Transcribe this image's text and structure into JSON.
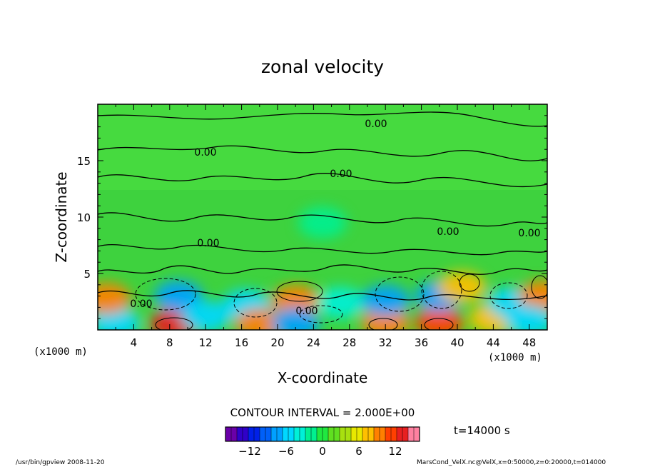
{
  "chart_data": {
    "type": "heatmap",
    "title": "zonal velocity",
    "xlabel": "X-coordinate",
    "ylabel": "Z-coordinate",
    "x_unit_left": "(x1000 m)",
    "x_unit_right": "(x1000 m)",
    "xlim": [
      0,
      50
    ],
    "ylim": [
      0,
      20
    ],
    "x_ticks": [
      4,
      8,
      12,
      16,
      20,
      24,
      28,
      32,
      36,
      40,
      44,
      48
    ],
    "y_ticks": [
      5,
      10,
      15
    ],
    "contour_interval_text": "CONTOUR INTERVAL = 2.000E+00",
    "contour_label": "0.00",
    "time_text": "t=14000 s",
    "colorbar": {
      "range": [
        -16,
        16
      ],
      "ticks": [
        -12,
        -6,
        0,
        6,
        12
      ],
      "tick_labels": [
        "−12",
        "−6",
        "0",
        "6",
        "12"
      ],
      "colors": [
        "#6a00a8",
        "#3000c8",
        "#0020e8",
        "#0060f8",
        "#00a0ff",
        "#00d8ff",
        "#00f0d8",
        "#00f090",
        "#20e840",
        "#60e020",
        "#a8e010",
        "#e8e800",
        "#ffc000",
        "#ff8000",
        "#ff4000",
        "#e82020",
        "#ff80a0"
      ]
    },
    "cells": [
      {
        "x": 2,
        "z": 0.6,
        "v": -6
      },
      {
        "x": 1,
        "z": 2.8,
        "v": 10
      },
      {
        "x": 8.5,
        "z": 0.5,
        "v": 13
      },
      {
        "x": 9,
        "z": 3.0,
        "v": -7
      },
      {
        "x": 12,
        "z": 1.2,
        "v": -5
      },
      {
        "x": 16.5,
        "z": 2.2,
        "v": -5
      },
      {
        "x": 18,
        "z": 0.5,
        "v": 10
      },
      {
        "x": 22,
        "z": 2.6,
        "v": 9
      },
      {
        "x": 22,
        "z": 0.6,
        "v": -8
      },
      {
        "x": 27,
        "z": 2.4,
        "v": -4
      },
      {
        "x": 32,
        "z": 0.6,
        "v": 10
      },
      {
        "x": 32,
        "z": 2.6,
        "v": -7
      },
      {
        "x": 38,
        "z": 0.6,
        "v": 12
      },
      {
        "x": 38,
        "z": 3.0,
        "v": -7
      },
      {
        "x": 40.5,
        "z": 3.8,
        "v": 8
      },
      {
        "x": 44,
        "z": 1.0,
        "v": 7
      },
      {
        "x": 46,
        "z": 2.4,
        "v": -6
      },
      {
        "x": 49.5,
        "z": 3.0,
        "v": 10
      },
      {
        "x": 48,
        "z": 0.8,
        "v": -5
      },
      {
        "x": 25,
        "z": 9.5,
        "v": -2
      }
    ]
  },
  "footer": {
    "left": "/usr/bin/gpview  2008-11-20",
    "right": "MarsCond_VelX.nc@VelX,x=0:50000,z=0:20000,t=014000"
  }
}
